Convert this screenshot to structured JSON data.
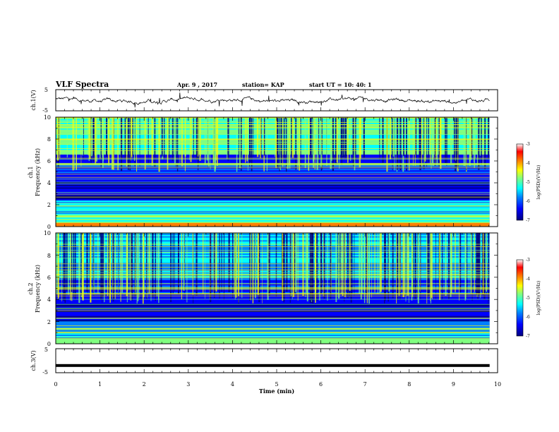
{
  "header": {
    "title": "VLF Spectra",
    "date": "Apr. 9 , 2017",
    "station": "station= KAP",
    "start": "start UT =  10: 40: 1"
  },
  "chart_data": [
    {
      "type": "line",
      "panel": "ch1-waveform",
      "ylabel": "ch.1(V)",
      "ylim": [
        -5,
        5
      ],
      "y_ticks": [
        "5",
        "-5"
      ],
      "xlim": [
        0,
        10
      ],
      "x_extent": [
        0,
        9.82
      ],
      "description_values": "noisy waveform around 0 V"
    },
    {
      "type": "heatmap",
      "panel": "ch1-spectrogram",
      "ylabel": "ch.1 Frequency (kHz)",
      "ylabel_lines": [
        "ch.1",
        "Frequency (kHz)"
      ],
      "ylim": [
        0,
        10
      ],
      "y_ticks": [
        "0",
        "2",
        "4",
        "6",
        "8",
        "10"
      ],
      "colorbar": {
        "label": "log(PSD)(V²/Hz)",
        "range": [
          -7,
          -3
        ],
        "ticks": [
          "-3",
          "-4",
          "-5",
          "-6",
          "-7"
        ]
      }
    },
    {
      "type": "heatmap",
      "panel": "ch2-spectrogram",
      "ylabel": "ch.2 Frequency (kHz)",
      "ylabel_lines": [
        "ch.2",
        "Frequency (kHz)"
      ],
      "ylim": [
        0,
        10
      ],
      "y_ticks": [
        "0",
        "2",
        "4",
        "6",
        "8",
        "10"
      ],
      "colorbar": {
        "label": "log(PSD)(V²/Hz)",
        "range": [
          -7,
          -3
        ],
        "ticks": [
          "-3",
          "-4",
          "-5",
          "-6",
          "-7"
        ]
      }
    },
    {
      "type": "line",
      "panel": "ch3-waveform",
      "ylabel": "ch.3(V)",
      "ylim": [
        -5,
        5
      ],
      "y_ticks": [
        "5",
        "-5"
      ],
      "xlim": [
        0,
        10
      ],
      "x_extent": [
        0,
        9.82
      ],
      "constant_value": -2
    }
  ],
  "x_axis": {
    "label": "Time  (min)",
    "ticks": [
      "0",
      "1",
      "2",
      "3",
      "4",
      "5",
      "6",
      "7",
      "8",
      "9",
      "10"
    ]
  },
  "colors": {
    "colormap": [
      "#000080",
      "#0000ff",
      "#0080ff",
      "#00ffff",
      "#80ff80",
      "#ffff00",
      "#ff8000",
      "#ff0000",
      "#ffffff"
    ]
  }
}
